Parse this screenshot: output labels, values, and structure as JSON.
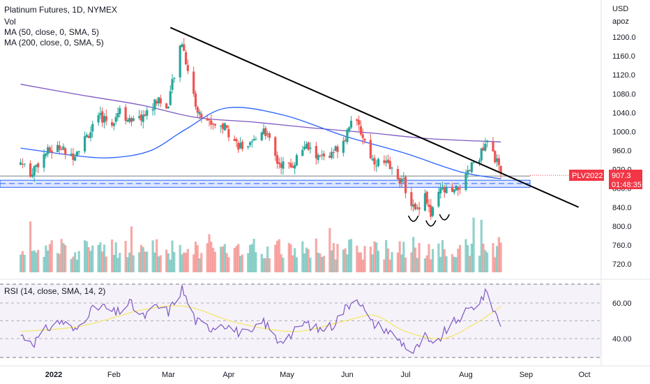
{
  "header": {
    "title": "Platinum Futures, 1D, NYMEX",
    "indicators": [
      "Vol",
      "MA (50, close, 0, SMA, 5)",
      "MA (200, close, 0, SMA, 5)"
    ],
    "currency": "USD",
    "scale_mode": "apoz"
  },
  "price_tag": {
    "symbol": "PLV2022",
    "price": "907.3",
    "countdown": "01:48:35"
  },
  "rsi": {
    "label": "RSI (14, close, SMA, 14, 2)",
    "levels": [
      "60.00",
      "40.00"
    ]
  },
  "colors": {
    "up": "#26a69a",
    "down": "#ef5350",
    "ma50": "#2962ff",
    "ma200": "#7e57c2",
    "rsi_line": "#7e57c2",
    "rsi_ma": "#f5e663",
    "trendline": "#000000",
    "zone": "#2962ff",
    "tag": "#f23645"
  },
  "chart_data": {
    "type": "candlestick",
    "price_axis": {
      "ticks": [
        "1200.0",
        "1160.0",
        "1120.0",
        "1080.0",
        "1040.0",
        "1000.0",
        "960.0",
        "920.0",
        "880.0",
        "840.0",
        "800.0",
        "760.0",
        "720.0"
      ]
    },
    "time_axis": {
      "labels": [
        "2022",
        "Feb",
        "Mar",
        "Apr",
        "May",
        "Jun",
        "Jul",
        "Aug",
        "Sep",
        "Oct"
      ]
    },
    "rsi_axis": {
      "ticks": [
        "60.00",
        "40.00"
      ]
    },
    "anchors": [
      [
        "2021-12-15",
        935
      ],
      [
        "2021-12-20",
        912
      ],
      [
        "2021-12-28",
        955
      ],
      [
        "2022-01-04",
        968
      ],
      [
        "2022-01-10",
        945
      ],
      [
        "2022-01-18",
        990
      ],
      [
        "2022-01-25",
        1030
      ],
      [
        "2022-01-31",
        1020
      ],
      [
        "2022-02-04",
        1050
      ],
      [
        "2022-02-10",
        1015
      ],
      [
        "2022-02-18",
        1040
      ],
      [
        "2022-02-24",
        1070
      ],
      [
        "2022-02-28",
        1045
      ],
      [
        "2022-03-03",
        1100
      ],
      [
        "2022-03-08",
        1190
      ],
      [
        "2022-03-11",
        1130
      ],
      [
        "2022-03-16",
        1040
      ],
      [
        "2022-03-22",
        1020
      ],
      [
        "2022-03-30",
        1010
      ],
      [
        "2022-04-05",
        975
      ],
      [
        "2022-04-11",
        960
      ],
      [
        "2022-04-19",
        1010
      ],
      [
        "2022-04-26",
        935
      ],
      [
        "2022-05-03",
        925
      ],
      [
        "2022-05-10",
        970
      ],
      [
        "2022-05-17",
        945
      ],
      [
        "2022-05-24",
        950
      ],
      [
        "2022-05-31",
        990
      ],
      [
        "2022-06-03",
        1030
      ],
      [
        "2022-06-08",
        1000
      ],
      [
        "2022-06-14",
        940
      ],
      [
        "2022-06-21",
        930
      ],
      [
        "2022-06-27",
        905
      ],
      [
        "2022-06-30",
        890
      ],
      [
        "2022-07-06",
        830
      ],
      [
        "2022-07-11",
        870
      ],
      [
        "2022-07-14",
        820
      ],
      [
        "2022-07-19",
        875
      ],
      [
        "2022-07-26",
        870
      ],
      [
        "2022-08-01",
        900
      ],
      [
        "2022-08-05",
        935
      ],
      [
        "2022-08-10",
        960
      ],
      [
        "2022-08-12",
        975
      ],
      [
        "2022-08-16",
        945
      ],
      [
        "2022-08-19",
        907.3
      ]
    ],
    "ma50": [
      [
        "2021-12-15",
        965
      ],
      [
        "2022-01-14",
        948
      ],
      [
        "2022-02-01",
        945
      ],
      [
        "2022-02-20",
        960
      ],
      [
        "2022-03-10",
        1005
      ],
      [
        "2022-03-31",
        1050
      ],
      [
        "2022-04-29",
        1035
      ],
      [
        "2022-05-31",
        990
      ],
      [
        "2022-06-30",
        955
      ],
      [
        "2022-07-29",
        915
      ],
      [
        "2022-08-19",
        900
      ]
    ],
    "ma200": [
      [
        "2021-12-15",
        1100
      ],
      [
        "2022-01-14",
        1078
      ],
      [
        "2022-02-15",
        1056
      ],
      [
        "2022-03-15",
        1030
      ],
      [
        "2022-04-14",
        1020
      ],
      [
        "2022-05-13",
        1008
      ],
      [
        "2022-06-13",
        997
      ],
      [
        "2022-07-13",
        985
      ],
      [
        "2022-08-19",
        978
      ]
    ],
    "trendline": [
      [
        "2022-03-02",
        1220
      ],
      [
        "2022-09-28",
        840
      ]
    ],
    "support_zone": [
      882,
      897
    ],
    "support_midline": 890,
    "resistance_line": 906,
    "rsi_anchors": [
      [
        "2021-12-15",
        42
      ],
      [
        "2021-12-22",
        38
      ],
      [
        "2021-12-29",
        46
      ],
      [
        "2022-01-05",
        50
      ],
      [
        "2022-01-12",
        44
      ],
      [
        "2022-01-19",
        55
      ],
      [
        "2022-01-26",
        58
      ],
      [
        "2022-02-02",
        54
      ],
      [
        "2022-02-09",
        60
      ],
      [
        "2022-02-16",
        52
      ],
      [
        "2022-02-23",
        58
      ],
      [
        "2022-03-01",
        55
      ],
      [
        "2022-03-08",
        68
      ],
      [
        "2022-03-15",
        50
      ],
      [
        "2022-03-22",
        46
      ],
      [
        "2022-03-29",
        49
      ],
      [
        "2022-04-05",
        44
      ],
      [
        "2022-04-12",
        42
      ],
      [
        "2022-04-19",
        50
      ],
      [
        "2022-04-26",
        39
      ],
      [
        "2022-05-03",
        42
      ],
      [
        "2022-05-10",
        49
      ],
      [
        "2022-05-17",
        45
      ],
      [
        "2022-05-24",
        47
      ],
      [
        "2022-05-31",
        57
      ],
      [
        "2022-06-06",
        64
      ],
      [
        "2022-06-13",
        49
      ],
      [
        "2022-06-20",
        46
      ],
      [
        "2022-06-27",
        40
      ],
      [
        "2022-07-05",
        32
      ],
      [
        "2022-07-11",
        41
      ],
      [
        "2022-07-15",
        35
      ],
      [
        "2022-07-22",
        45
      ],
      [
        "2022-07-29",
        52
      ],
      [
        "2022-08-05",
        58
      ],
      [
        "2022-08-12",
        66
      ],
      [
        "2022-08-16",
        55
      ],
      [
        "2022-08-19",
        48
      ]
    ],
    "rsi_ma_anchors": [
      [
        "2021-12-15",
        44
      ],
      [
        "2022-01-15",
        47
      ],
      [
        "2022-02-15",
        56
      ],
      [
        "2022-03-10",
        58
      ],
      [
        "2022-04-05",
        49
      ],
      [
        "2022-05-05",
        44
      ],
      [
        "2022-05-31",
        50
      ],
      [
        "2022-06-15",
        53
      ],
      [
        "2022-07-01",
        44
      ],
      [
        "2022-07-20",
        40
      ],
      [
        "2022-08-05",
        48
      ],
      [
        "2022-08-19",
        58
      ]
    ]
  }
}
